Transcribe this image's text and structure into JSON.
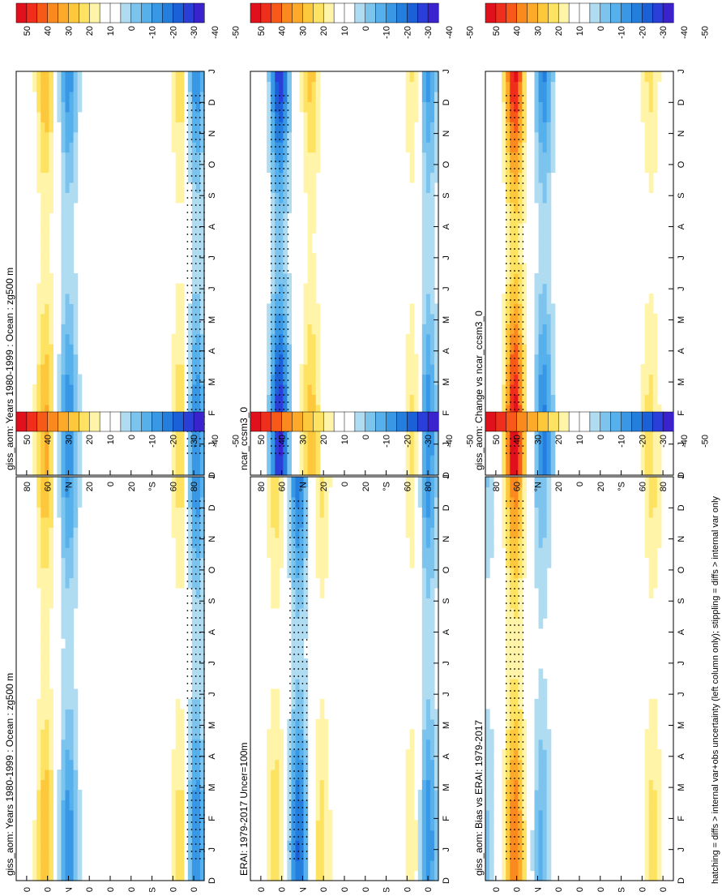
{
  "footnote": "hatching = diffs > internal var+obs uncertainty (left column only); stippling = diffs > internal var only",
  "colorbar": {
    "labels": [
      "50",
      "40",
      "30",
      "20",
      "10",
      "0",
      "-10",
      "-20",
      "-30",
      "-40",
      "-50"
    ],
    "colors": [
      "#e0101c",
      "#f02e1c",
      "#f75a18",
      "#fb8a1e",
      "#fdaa2a",
      "#fdc83c",
      "#fee262",
      "#fff4a8",
      "#ffffff",
      "#ffffff",
      "#b0dcf2",
      "#7cc4ee",
      "#56b0ec",
      "#3898e6",
      "#247ede",
      "#1c60d8",
      "#2a3ed8",
      "#3a22cc"
    ]
  },
  "chart_data": [
    {
      "type": "heatmap",
      "title": "giss_aom: Years 1980-1999 : Ocean : zg500 m",
      "x_tick_labels": [
        "D",
        "J",
        "F",
        "M",
        "A",
        "M",
        "J",
        "J",
        "A",
        "S",
        "O",
        "N",
        "D",
        "J"
      ],
      "y_tick_labels": [
        "80",
        "60",
        "°N",
        "20",
        "0",
        "20",
        "°S",
        "60",
        "80"
      ],
      "x_range": [
        "Dec",
        "Jan"
      ],
      "y_range": [
        -90,
        90
      ],
      "value_range": [
        -50,
        50
      ],
      "units": "m",
      "bands": [
        {
          "lat": 62,
          "amp": 22
        },
        {
          "lat": 40,
          "amp": -26
        },
        {
          "lat": -68,
          "amp": 16
        },
        {
          "lat": -82,
          "amp": -30
        }
      ]
    },
    {
      "type": "heatmap",
      "title": "giss_aom: Years 1980-1999 : Ocean : zg500 m",
      "x_tick_labels": [
        "D",
        "J",
        "F",
        "M",
        "A",
        "M",
        "J",
        "J",
        "A",
        "S",
        "O",
        "N",
        "D",
        "J"
      ],
      "y_tick_labels": [
        "80",
        "60",
        "°N",
        "20",
        "0",
        "20",
        "°S",
        "60",
        "80"
      ],
      "x_range": [
        "Dec",
        "Jan"
      ],
      "y_range": [
        -90,
        90
      ],
      "value_range": [
        -50,
        50
      ],
      "units": "m",
      "bands": [
        {
          "lat": 62,
          "amp": 24
        },
        {
          "lat": 40,
          "amp": -28
        },
        {
          "lat": -68,
          "amp": 18
        },
        {
          "lat": -82,
          "amp": -30
        }
      ]
    },
    {
      "type": "heatmap",
      "title": "ERAI: 1979-2017 Uncer=100m",
      "x_tick_labels": [
        "D",
        "J",
        "F",
        "M",
        "A",
        "M",
        "J",
        "J",
        "A",
        "S",
        "O",
        "N",
        "D",
        "J"
      ],
      "y_tick_labels": [
        "80",
        "60",
        "°N",
        "20",
        "0",
        "20",
        "°S",
        "60",
        "80"
      ],
      "x_range": [
        "Dec",
        "Jan"
      ],
      "y_range": [
        -90,
        90
      ],
      "value_range": [
        -50,
        50
      ],
      "units": "m",
      "bands": [
        {
          "lat": 66,
          "amp": 16
        },
        {
          "lat": 44,
          "amp": -34
        },
        {
          "lat": 22,
          "amp": 14
        },
        {
          "lat": -66,
          "amp": 12
        },
        {
          "lat": -80,
          "amp": -28
        }
      ]
    },
    {
      "type": "heatmap",
      "title": "ncar_ccsm3_0",
      "x_tick_labels": [
        "D",
        "J",
        "F",
        "M",
        "A",
        "M",
        "J",
        "J",
        "A",
        "S",
        "O",
        "N",
        "D",
        "J"
      ],
      "y_tick_labels": [
        "80",
        "60",
        "°N",
        "20",
        "0",
        "20",
        "°S",
        "60",
        "80"
      ],
      "x_range": [
        "Dec",
        "Jan"
      ],
      "y_range": [
        -90,
        90
      ],
      "value_range": [
        -50,
        50
      ],
      "units": "m",
      "bands": [
        {
          "lat": 62,
          "amp": -46
        },
        {
          "lat": 32,
          "amp": 20
        },
        {
          "lat": -66,
          "amp": 14
        },
        {
          "lat": -80,
          "amp": -28
        }
      ]
    },
    {
      "type": "heatmap",
      "title": "giss_aom: Bias vs ERAI: 1979-2017",
      "x_tick_labels": [
        "D",
        "J",
        "F",
        "M",
        "A",
        "M",
        "J",
        "J",
        "A",
        "S",
        "O",
        "N",
        "D",
        "J"
      ],
      "y_tick_labels": [
        "80",
        "60",
        "°N",
        "20",
        "0",
        "20",
        "°S",
        "60",
        "80"
      ],
      "x_range": [
        "Dec",
        "Jan"
      ],
      "y_range": [
        -90,
        90
      ],
      "value_range": [
        -50,
        50
      ],
      "units": "m",
      "bands": [
        {
          "lat": 62,
          "amp": 34
        },
        {
          "lat": 36,
          "amp": -18
        },
        {
          "lat": 88,
          "amp": -12
        },
        {
          "lat": -70,
          "amp": 14
        }
      ]
    },
    {
      "type": "heatmap",
      "title": "giss_aom: Change vs ncar_ccsm3_0",
      "x_tick_labels": [
        "D",
        "J",
        "F",
        "M",
        "A",
        "M",
        "J",
        "J",
        "A",
        "S",
        "O",
        "N",
        "D",
        "J"
      ],
      "y_tick_labels": [
        "80",
        "60",
        "°N",
        "20",
        "0",
        "20",
        "°S",
        "60",
        "80"
      ],
      "x_range": [
        "Dec",
        "Jan"
      ],
      "y_range": [
        -90,
        90
      ],
      "value_range": [
        -50,
        50
      ],
      "units": "m",
      "bands": [
        {
          "lat": 62,
          "amp": 50
        },
        {
          "lat": 34,
          "amp": -30
        },
        {
          "lat": -68,
          "amp": 14
        }
      ]
    }
  ]
}
